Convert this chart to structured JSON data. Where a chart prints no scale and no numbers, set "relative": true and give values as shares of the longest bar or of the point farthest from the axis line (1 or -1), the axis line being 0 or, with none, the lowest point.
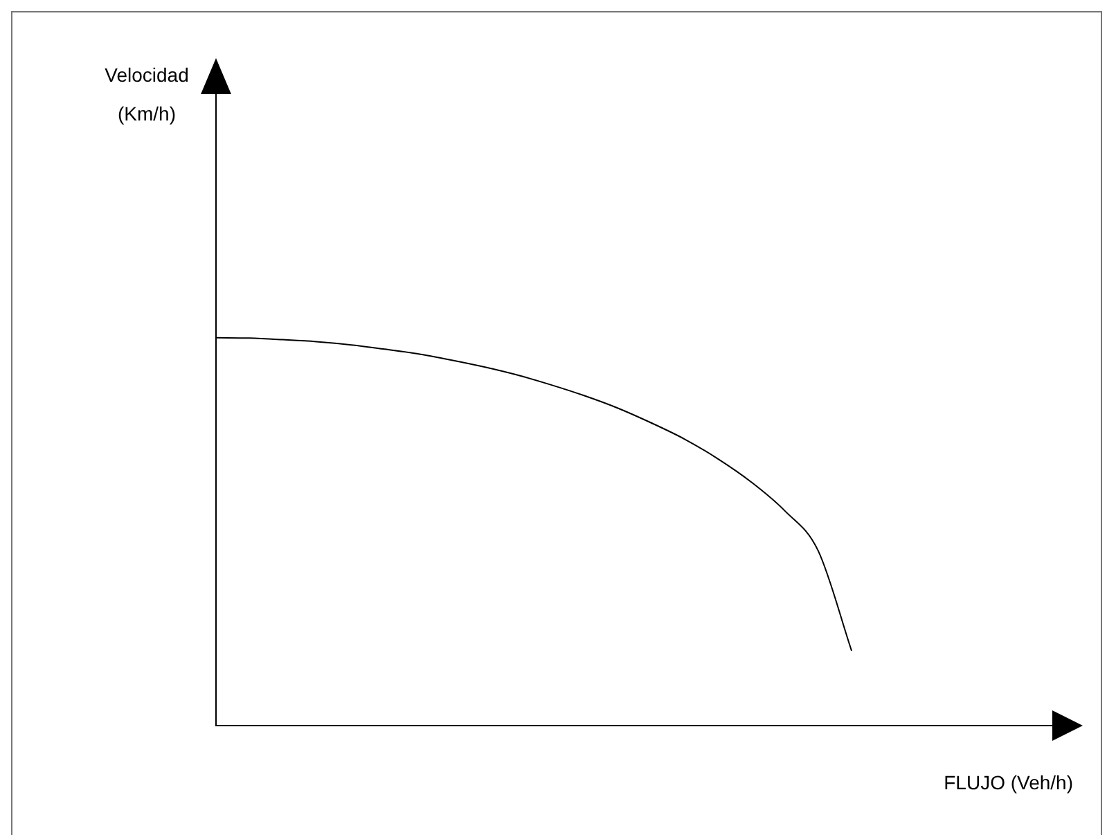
{
  "chart_data": {
    "type": "line",
    "relative": true,
    "xlabel": "FLUJO (Veh/h)",
    "annotations": [
      "Velocidad (Km/h)"
    ],
    "color": "#000000",
    "marker": "none",
    "line_style": "solid",
    "legend": false,
    "categories": [
      null,
      null,
      null,
      null,
      null,
      null,
      null,
      null,
      null,
      null,
      null,
      null,
      null,
      null,
      null,
      null,
      null,
      null,
      null,
      null,
      null,
      null,
      null,
      null,
      null,
      null
    ],
    "values": [
      1.0,
      0.999,
      0.995,
      0.99,
      0.982,
      0.971,
      0.959,
      0.943,
      0.925,
      0.904,
      0.879,
      0.851,
      0.819,
      0.781,
      0.739,
      0.688,
      0.628,
      0.554,
      0.451,
      0.193,
      null,
      null,
      null,
      null,
      null,
      null
    ]
  }
}
